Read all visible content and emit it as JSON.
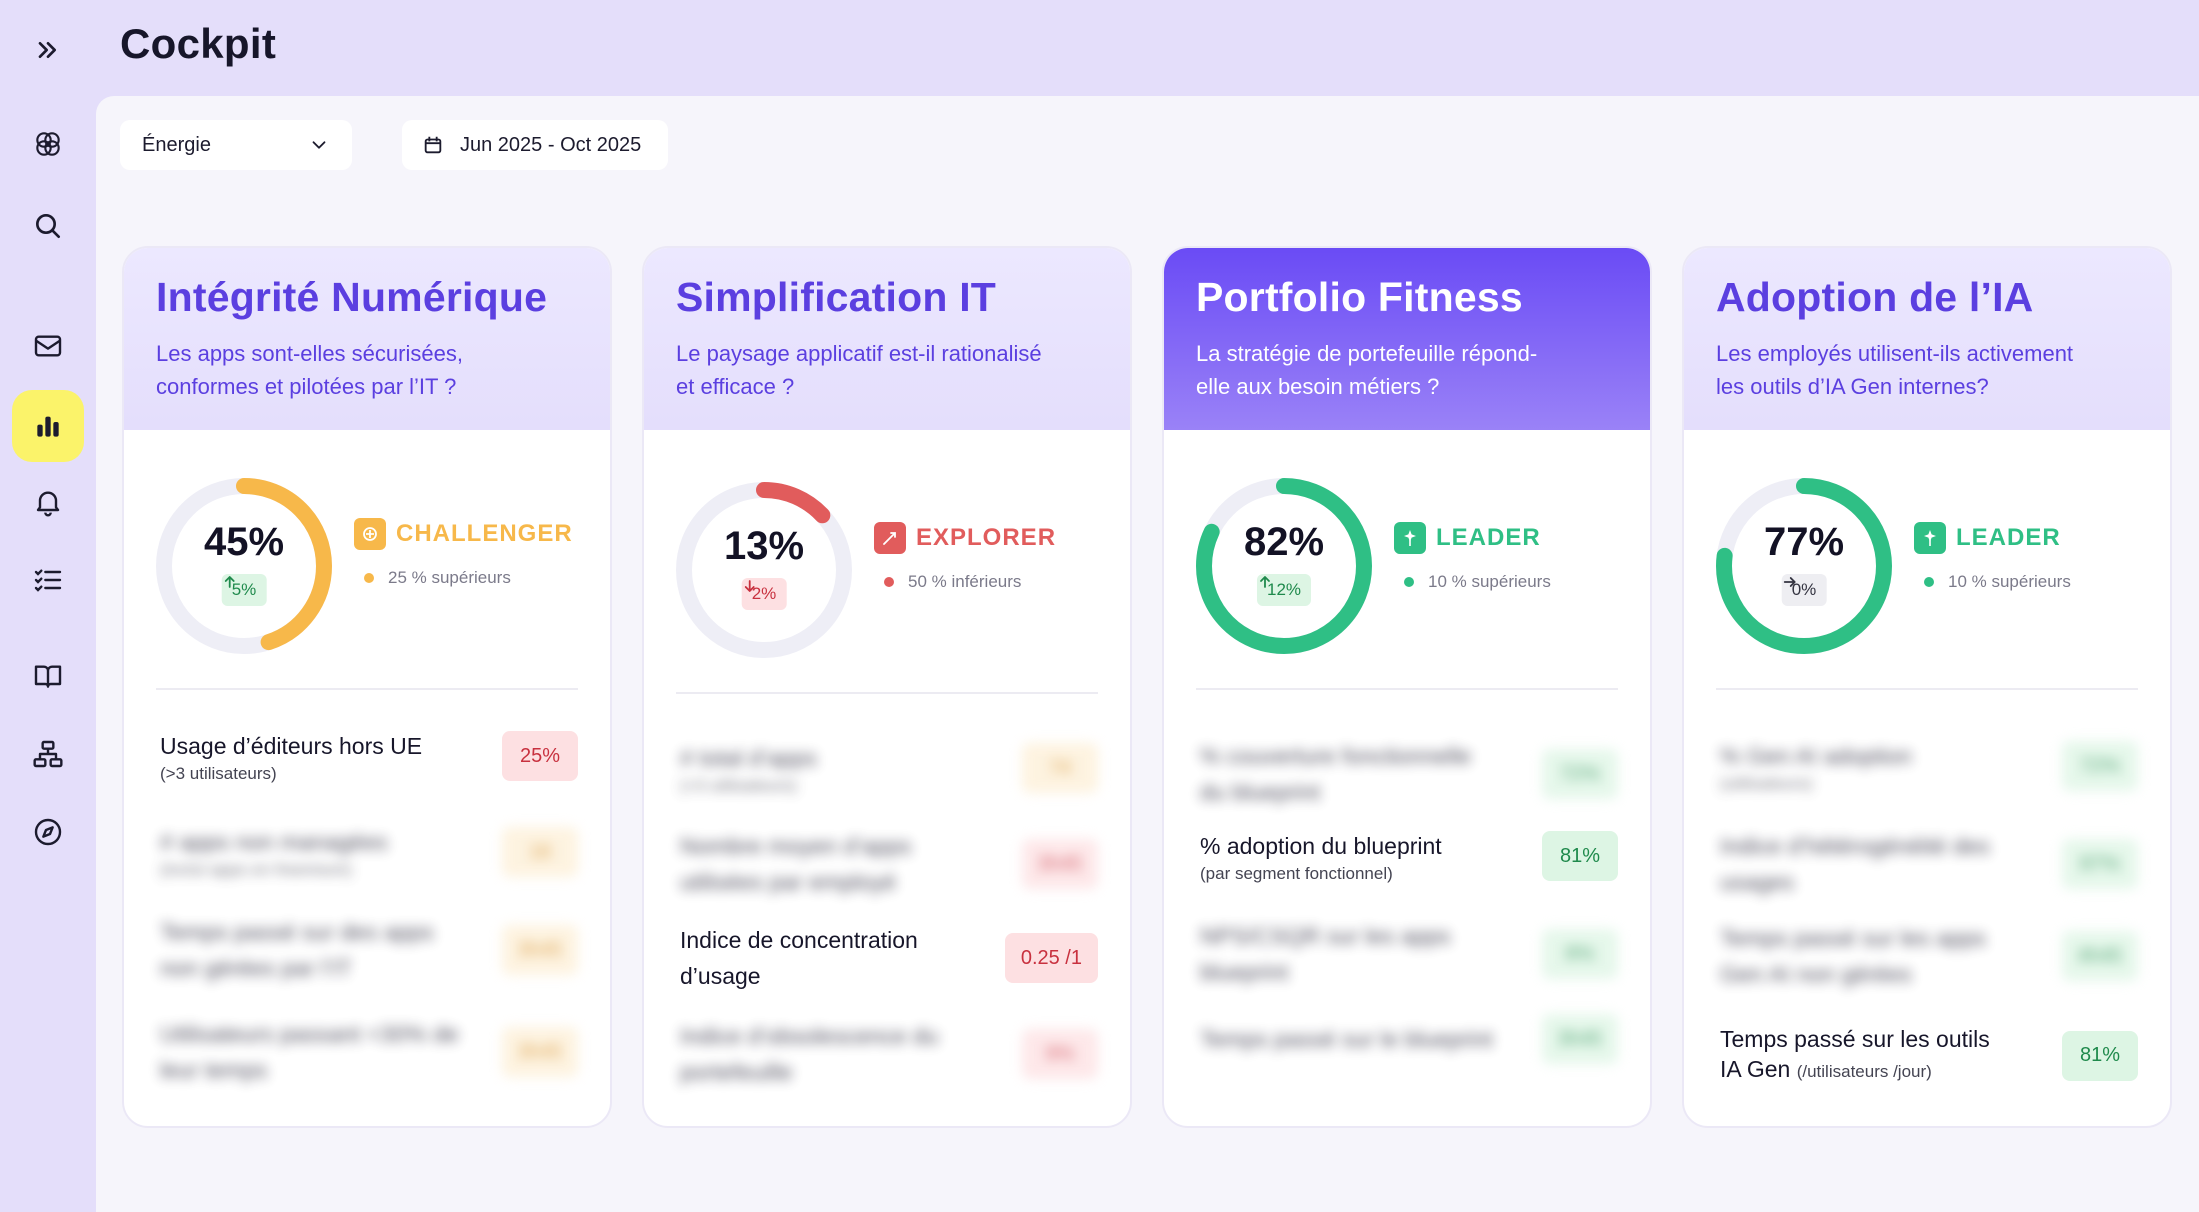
{
  "page": {
    "title": "Cockpit"
  },
  "sidebar": {
    "items": [
      {
        "icon": "expand-icon"
      },
      {
        "icon": "logo-icon"
      },
      {
        "icon": "search-icon"
      },
      {
        "icon": "mail-icon"
      },
      {
        "icon": "chart-icon",
        "active": true
      },
      {
        "icon": "bell-icon"
      },
      {
        "icon": "checklist-icon"
      },
      {
        "icon": "book-icon"
      },
      {
        "icon": "sitemap-icon"
      },
      {
        "icon": "compass-icon"
      }
    ]
  },
  "filters": {
    "domain": "Énergie",
    "date_range": "Jun 2025 - Oct 2025"
  },
  "cards": [
    {
      "title": "Intégrité Numérique",
      "subtitle_line1": "Les apps sont-elles sécurisées,",
      "subtitle_line2": "conformes et pilotées par l’IT ?",
      "score": "45%",
      "score_value": 0.45,
      "trend": "5%",
      "tier": "CHALLENGER",
      "tier_note": "25 % supérieurs",
      "color": "#f7b84a",
      "metrics": [
        {
          "label": "Usage d’éditeurs hors UE",
          "sub": "(>3 utilisateurs)",
          "value": "25%"
        },
        {
          "label": "# apps non managées",
          "sub": "(inclut apps en freemium)",
          "value": "16"
        },
        {
          "label": "Temps passé sur des apps non gérées par l’IT",
          "value": "3h45"
        },
        {
          "label": "Utilisateurs passant <30% de leur temps",
          "value": "3h45"
        }
      ]
    },
    {
      "title": "Simplification IT",
      "subtitle_line1": "Le paysage applicatif est-il rationalisé",
      "subtitle_line2": "et efficace ?",
      "score": "13%",
      "score_value": 0.13,
      "trend": "2%",
      "tier": "EXPLORER",
      "tier_note": "50 % inférieurs",
      "color": "#e15c5c",
      "metrics": [
        {
          "label": "# total d’apps",
          "sub": "(>3 utilisateurs)",
          "value": "74"
        },
        {
          "label": "Nombre moyen d’apps utilisées par employé",
          "value": "3h45"
        },
        {
          "label": "Indice de concentration",
          "label2": "d’usage",
          "value": "0.25 /1"
        },
        {
          "label": "Indice d’obsolescence du portefeuille",
          "value": "9%"
        }
      ]
    },
    {
      "title": "Portfolio Fitness",
      "subtitle_line1": "La stratégie de portefeuille répond-",
      "subtitle_line2": "elle aux besoin métiers ?",
      "score": "82%",
      "score_value": 0.82,
      "trend": "12%",
      "tier": "LEADER",
      "tier_note": "10 % supérieurs",
      "color": "#2fbf85",
      "metrics": [
        {
          "label": "% couverture fonctionnelle du blueprint",
          "value": "72%"
        },
        {
          "label": "% adoption du blueprint",
          "sub": "(par segment fonctionnel)",
          "value": "81%"
        },
        {
          "label": "NPS/CSQR sur les apps blueprint",
          "value": "8%"
        },
        {
          "label": "Temps passé sur le blueprint",
          "value": "3h45"
        }
      ]
    },
    {
      "title": "Adoption de l’IA",
      "subtitle_line1": "Les employés utilisent-ils activement",
      "subtitle_line2": "les outils d’IA Gen internes?",
      "score": "77%",
      "score_value": 0.77,
      "trend": "0%",
      "tier": "LEADER",
      "tier_note": "10 % supérieurs",
      "color": "#2fbf85",
      "metrics": [
        {
          "label": "% Gen AI adoption",
          "sub": "(utilisateurs)",
          "value": "72%"
        },
        {
          "label": "Indice d’hétérogénéité des usages",
          "value": "87%"
        },
        {
          "label": "Temps passé sur les apps Gen AI non gérées",
          "value": "4h45"
        },
        {
          "label": "Temps passé sur les outils",
          "label2": "IA Gen",
          "inline_sub": "(/utilisateurs /jour)",
          "value": "81%"
        }
      ]
    }
  ]
}
